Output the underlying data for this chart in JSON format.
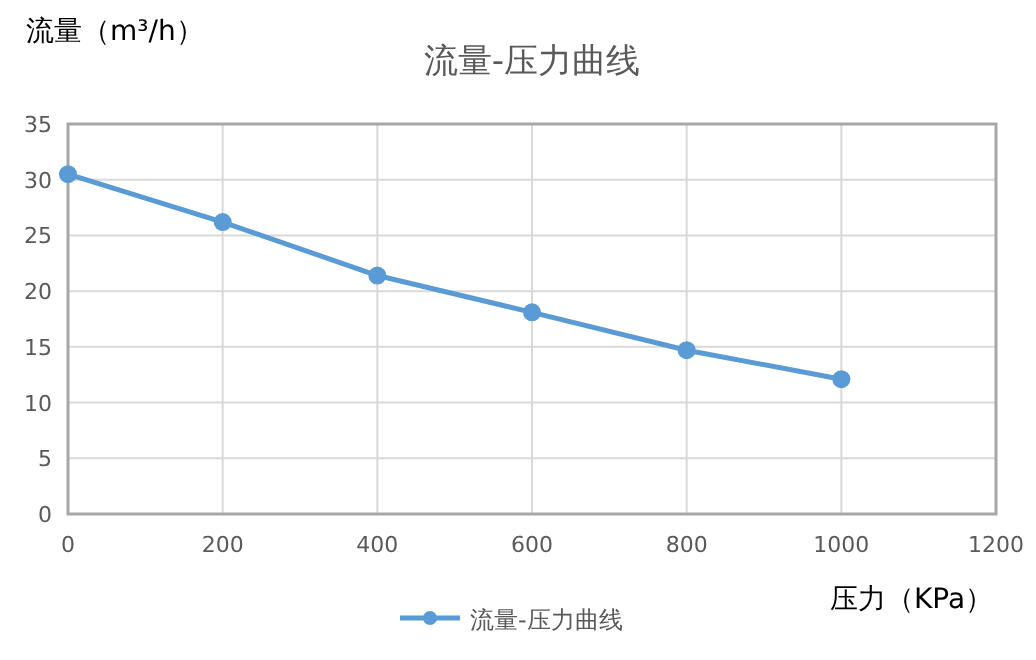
{
  "chart_data": {
    "type": "line",
    "title": "流量-压力曲线",
    "xlabel": "压力（KPa）",
    "ylabel": "流量（m³/h）",
    "x": [
      0,
      200,
      400,
      600,
      800,
      1000
    ],
    "series": [
      {
        "name": "流量-压力曲线",
        "color": "#5b9bd5",
        "values": [
          30.5,
          26.2,
          21.4,
          18.1,
          14.7,
          12.1
        ]
      }
    ],
    "xlim": [
      0,
      1200
    ],
    "xticks": [
      0,
      200,
      400,
      600,
      800,
      1000,
      1200
    ],
    "ylim": [
      0,
      35
    ],
    "yticks": [
      0,
      5,
      10,
      15,
      20,
      25,
      30,
      35
    ],
    "grid": true,
    "legend": "bottom",
    "marker": "circle",
    "line_style": "solid"
  }
}
